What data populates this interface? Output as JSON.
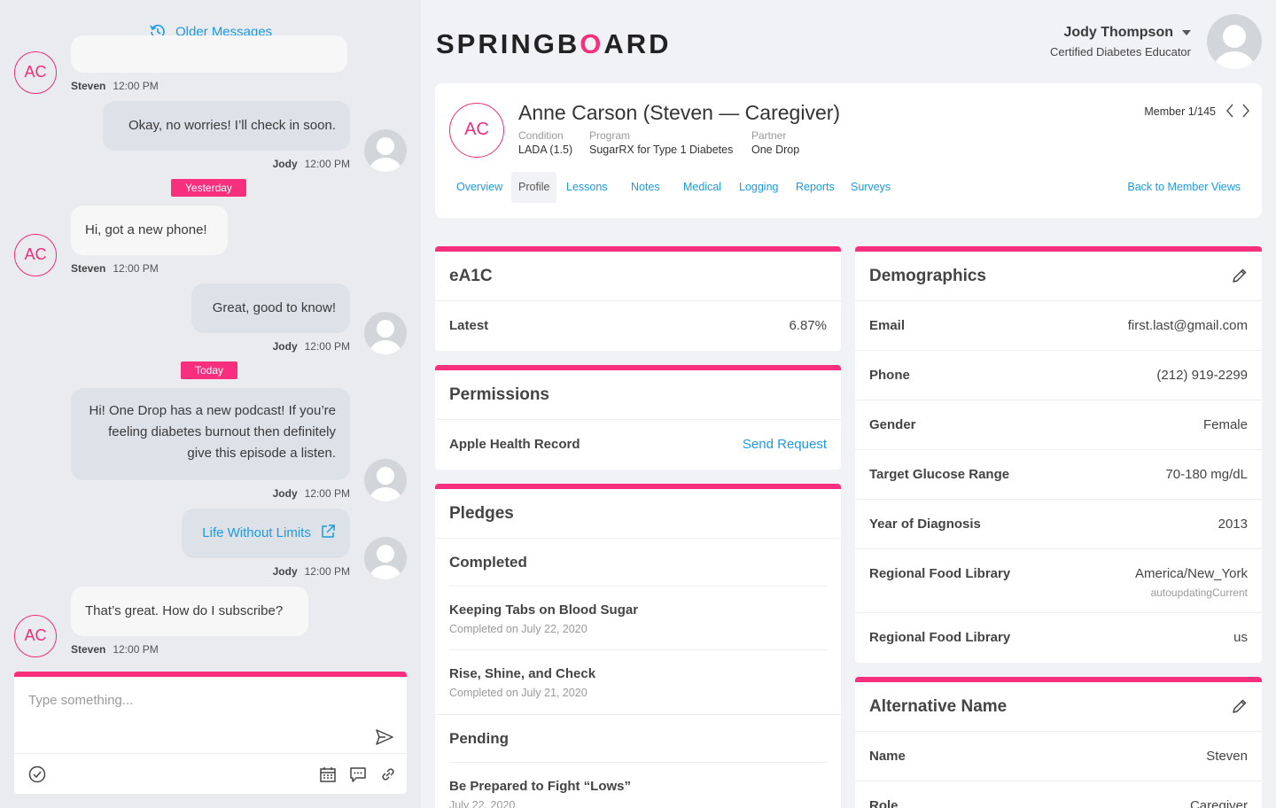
{
  "chat": {
    "older_messages": "Older Messages",
    "messages": [
      {
        "sender": "Steven",
        "time": "12:00 PM"
      },
      {
        "sender": "Jody",
        "time": "12:00 PM",
        "text": "Okay, no worries! I’ll check in soon."
      },
      {
        "day": "Yesterday"
      },
      {
        "sender": "Steven",
        "time": "12:00 PM",
        "text": "Hi, got a new phone!"
      },
      {
        "sender": "Jody",
        "time": "12:00 PM",
        "text": "Great, good to know!"
      },
      {
        "day": "Today"
      },
      {
        "sender": "Jody",
        "time": "12:00 PM",
        "text": "Hi! One Drop has a new podcast! If you’re feeling diabetes burnout then definitely give this episode a listen."
      },
      {
        "sender": "Jody",
        "time": "12:00 PM",
        "text": "Life Without Limits"
      },
      {
        "sender": "Steven",
        "time": "12:00 PM",
        "text": "That’s great. How do I subscribe?"
      }
    ],
    "avatar_initials": "AC",
    "composer_placeholder": "Type something..."
  },
  "header": {
    "logo_left": "SPRINGB",
    "logo_o": "O",
    "logo_right": "ARD",
    "user_name": "Jody Thompson",
    "user_title": "Certified Diabetes Educator"
  },
  "member": {
    "initials": "AC",
    "name": "Anne Carson (Steven — Caregiver)",
    "condition_label": "Condition",
    "condition": "LADA (1.5)",
    "program_label": "Program",
    "program": "SugarRX for Type 1 Diabetes",
    "partner_label": "Partner",
    "partner": "One Drop",
    "count_prefix": "Member 1/",
    "count_total": "145",
    "tabs": [
      "Overview",
      "Profile",
      "Lessons",
      "Notes",
      "Medical",
      "Logging",
      "Reports",
      "Surveys"
    ],
    "active_tab": "Profile",
    "back_link": "Back to Member Views"
  },
  "ea1c": {
    "title": "eA1C",
    "latest_label": "Latest",
    "latest_value": "6.87%"
  },
  "permissions": {
    "title": "Permissions",
    "item_label": "Apple Health Record",
    "action": "Send Request"
  },
  "pledges": {
    "title": "Pledges",
    "completed_label": "Completed",
    "completed": [
      {
        "title": "Keeping Tabs on Blood Sugar",
        "date": "Completed on July 22, 2020"
      },
      {
        "title": "Rise, Shine, and Check",
        "date": "Completed on July 21, 2020"
      }
    ],
    "pending_label": "Pending",
    "pending": [
      {
        "title": "Be Prepared to Fight “Lows”",
        "date": "July 22, 2020"
      }
    ]
  },
  "demographics": {
    "title": "Demographics",
    "rows": [
      {
        "label": "Email",
        "value": "first.last@gmail.com"
      },
      {
        "label": "Phone",
        "value": "(212) 919-2299"
      },
      {
        "label": "Gender",
        "value": "Female"
      },
      {
        "label": "Target Glucose Range",
        "value": "70-180 mg/dL"
      },
      {
        "label": "Year of Diagnosis",
        "value": "2013"
      },
      {
        "label": "Regional Food Library",
        "value": "America/New_York",
        "sub": "autoupdatingCurrent"
      },
      {
        "label": "Regional Food Library",
        "value": "us"
      }
    ]
  },
  "alt_name": {
    "title": "Alternative Name",
    "rows": [
      {
        "label": "Name",
        "value": "Steven"
      },
      {
        "label": "Role",
        "value": "Caregiver"
      }
    ]
  }
}
